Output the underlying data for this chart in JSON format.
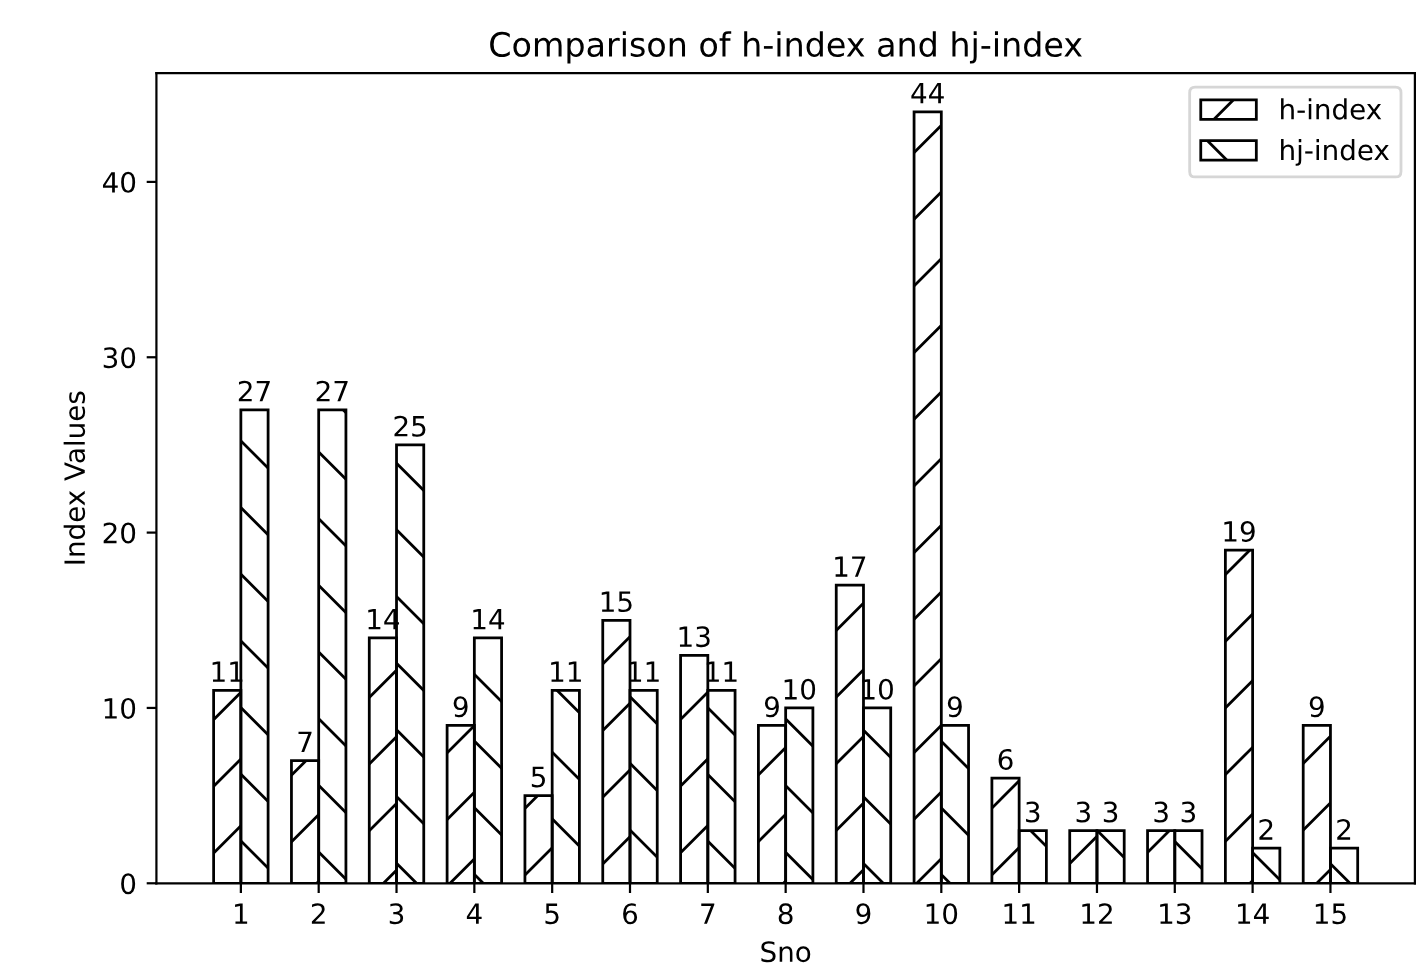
{
  "chart_data": {
    "type": "bar",
    "title": "Comparison of h-index and hj-index",
    "xlabel": "Sno",
    "ylabel": "Index Values",
    "categories": [
      "1",
      "2",
      "3",
      "4",
      "5",
      "6",
      "7",
      "8",
      "9",
      "10",
      "11",
      "12",
      "13",
      "14",
      "15"
    ],
    "series": [
      {
        "name": "h-index",
        "color": "#000000",
        "values": [
          11,
          7,
          14,
          9,
          5,
          15,
          13,
          9,
          17,
          44,
          6,
          3,
          3,
          19,
          9
        ]
      },
      {
        "name": "hj-index",
        "color": "#000000",
        "values": [
          27,
          27,
          25,
          14,
          11,
          11,
          11,
          10,
          10,
          9,
          3,
          3,
          3,
          2,
          2
        ]
      }
    ],
    "ylim": [
      0,
      46.2
    ],
    "yticks": [
      0,
      10,
      20,
      30,
      40
    ],
    "data_labels": true,
    "legend": "top right",
    "grid": false
  }
}
